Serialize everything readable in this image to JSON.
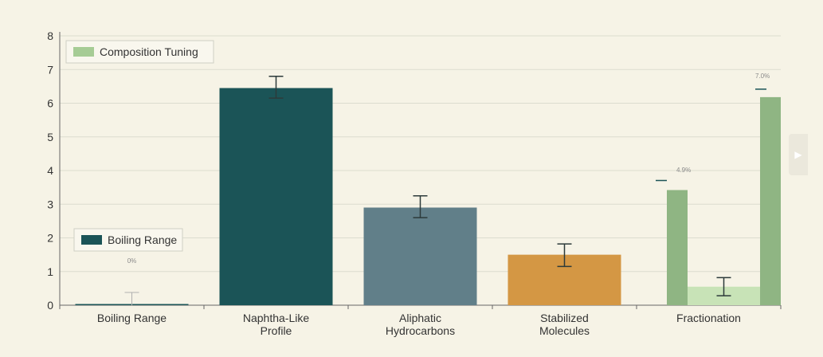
{
  "chart_data": {
    "type": "bar",
    "categories": [
      "Boiling Range",
      "Naphtha-Like Profile",
      "Aliphatic Hydrocarbons",
      "Stabilized Molecules",
      "Fractionation"
    ],
    "category_lines": [
      [
        "Boiling Range"
      ],
      [
        "Naphtha-Like",
        "Profile"
      ],
      [
        "Aliphatic",
        "Hydrocarbons"
      ],
      [
        "Stabilized",
        "Molecules"
      ],
      [
        "Fractionation"
      ]
    ],
    "ylim": [
      0,
      8
    ],
    "yticks": [
      0,
      1,
      2,
      3,
      4,
      5,
      6,
      7,
      8
    ],
    "grid": true,
    "legends": [
      {
        "label": "Composition Tuning",
        "color": "#a6cc95",
        "placement": "top-left"
      },
      {
        "label": "Boiling Range",
        "color": "#1b5457",
        "placement": "bottom-left"
      }
    ],
    "bars": [
      {
        "category": "Boiling Range",
        "value": 0.02,
        "err_low": 0.0,
        "err_high": 0.38,
        "color": "#1b5457"
      },
      {
        "category": "Naphtha-Like Profile",
        "value": 6.45,
        "err_low": 6.15,
        "err_high": 6.8,
        "color": "#1b5457"
      },
      {
        "category": "Aliphatic Hydrocarbons",
        "value": 2.9,
        "err_low": 2.6,
        "err_high": 3.25,
        "color": "#617f89"
      },
      {
        "category": "Stabilized Molecules",
        "value": 1.5,
        "err_low": 1.15,
        "err_high": 1.82,
        "color": "#d49744"
      }
    ],
    "fractionation": [
      {
        "name": "left",
        "value": 3.42,
        "color": "#8fb583"
      },
      {
        "name": "middle",
        "value": 0.55,
        "err_low": 0.28,
        "err_high": 0.82,
        "color": "#c8e3b7"
      },
      {
        "name": "right",
        "value": 6.18,
        "color": "#8fb583"
      }
    ],
    "annotations": [
      {
        "text": "0%",
        "at_value": 1.25,
        "category": "Boiling Range"
      },
      {
        "text": "4.9%",
        "at_value": 3.95,
        "category": "Fractionation",
        "bar": "left"
      },
      {
        "text": "7.0%",
        "at_value": 6.75,
        "category": "Fractionation",
        "bar": "right"
      }
    ],
    "colors": {
      "accent_dark": "#1b5457",
      "grid": "#dcdccf",
      "axis": "#666666"
    }
  },
  "ui": {
    "play_icon": "play-icon",
    "play_glyph": "▶"
  }
}
